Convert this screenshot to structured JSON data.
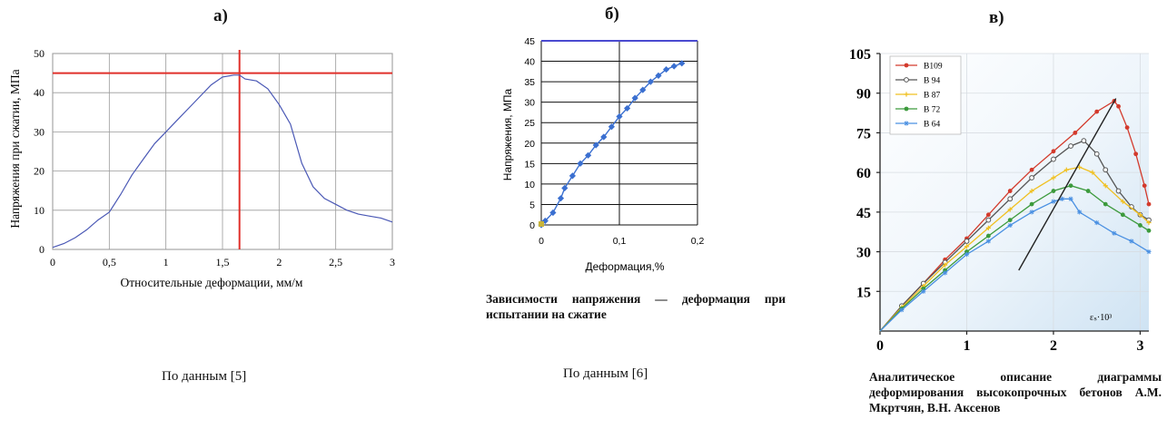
{
  "panel_labels": [
    "а)",
    "б)",
    "в)"
  ],
  "captions": {
    "a_source": "По данным [5]",
    "b_source": "По данным [6]",
    "b_title": "Зависимости напряжения — деформация при испытании на сжатие",
    "c_title": "Аналитическое описание диаграммы деформирования высокопрочных бетонов А.М. Мкртчян, В.Н. Аксенов"
  },
  "chart_data": [
    {
      "type": "line",
      "panel": "а)",
      "xlabel": "Относительные деформации, мм/м",
      "ylabel": "Напряжения при сжатии, МПа",
      "xlim": [
        0,
        3
      ],
      "ylim": [
        0,
        50
      ],
      "xticks": [
        0,
        0.5,
        1,
        1.5,
        2,
        2.5,
        3
      ],
      "xtick_labels": [
        "0",
        "0,5",
        "1",
        "1,5",
        "2",
        "2,5",
        "3"
      ],
      "yticks": [
        0,
        10,
        20,
        30,
        40,
        50
      ],
      "ytick_labels": [
        "0",
        "10",
        "20",
        "30",
        "40",
        "50"
      ],
      "grid": true,
      "reference_lines": {
        "y": 45,
        "x": 1.65,
        "color": "#e0302a"
      },
      "series": [
        {
          "color": "#4a58b5",
          "x": [
            0,
            0.1,
            0.2,
            0.3,
            0.4,
            0.5,
            0.6,
            0.7,
            0.8,
            0.9,
            1.0,
            1.1,
            1.2,
            1.3,
            1.4,
            1.5,
            1.6,
            1.65,
            1.7,
            1.8,
            1.9,
            2.0,
            2.1,
            2.2,
            2.3,
            2.4,
            2.5,
            2.6,
            2.7,
            2.8,
            2.9,
            3.0
          ],
          "y": [
            0.5,
            1.5,
            3,
            5,
            7.5,
            9.5,
            14,
            19,
            23,
            27,
            30,
            33,
            36,
            39,
            42,
            44,
            44.5,
            44.5,
            43.5,
            43,
            41,
            37,
            32,
            22,
            16,
            13,
            11.5,
            10,
            9,
            8.5,
            8,
            7
          ]
        }
      ]
    },
    {
      "type": "scatter",
      "panel": "б)",
      "xlabel": "Деформация,%",
      "ylabel": "Напряжения, МПа",
      "xlim": [
        0,
        0.2
      ],
      "ylim": [
        0,
        45
      ],
      "xticks": [
        0,
        0.1,
        0.2
      ],
      "xtick_labels": [
        "0",
        "0,1",
        "0,2"
      ],
      "yticks": [
        0,
        5,
        10,
        15,
        20,
        25,
        30,
        35,
        40,
        45
      ],
      "ytick_labels": [
        "0",
        "5",
        "10",
        "15",
        "20",
        "25",
        "30",
        "35",
        "40",
        "45"
      ],
      "grid": true,
      "top_line": {
        "y": 45,
        "color": "#4a4ad0"
      },
      "series": [
        {
          "color": "#3a6fd0",
          "x": [
            0,
            0.005,
            0.015,
            0.025,
            0.03,
            0.04,
            0.05,
            0.06,
            0.07,
            0.08,
            0.09,
            0.1,
            0.11,
            0.12,
            0.13,
            0.14,
            0.15,
            0.16,
            0.17,
            0.18
          ],
          "y": [
            0,
            1,
            3,
            6.5,
            9,
            12,
            15,
            17,
            19.5,
            21.5,
            24,
            26.5,
            28.5,
            31,
            33,
            35,
            36.5,
            38,
            38.8,
            39.5
          ]
        }
      ]
    },
    {
      "type": "line",
      "panel": "в)",
      "annotation": "εₛ·10³",
      "xlim": [
        0,
        3.1
      ],
      "ylim": [
        0,
        105
      ],
      "xticks": [
        0,
        1,
        2,
        3
      ],
      "xtick_labels": [
        "0",
        "1",
        "2",
        "3"
      ],
      "yticks": [
        15,
        30,
        45,
        60,
        75,
        90,
        105
      ],
      "ytick_labels": [
        "15",
        "30",
        "45",
        "60",
        "75",
        "90",
        "105"
      ],
      "grid": true,
      "legend": "top-left",
      "series": [
        {
          "name": "B109",
          "color": "#d33a2c",
          "marker": "filled-circle",
          "x": [
            0,
            0.25,
            0.5,
            0.75,
            1.0,
            1.25,
            1.5,
            1.75,
            2.0,
            2.25,
            2.5,
            2.7,
            2.75,
            2.85,
            2.95,
            3.05,
            3.1
          ],
          "y": [
            0,
            9.5,
            18,
            27,
            35,
            44,
            53,
            61,
            68,
            75,
            83,
            87,
            85,
            77,
            67,
            55,
            48
          ]
        },
        {
          "name": "B 94",
          "color": "#555555",
          "marker": "open-circle",
          "x": [
            0,
            0.25,
            0.5,
            0.75,
            1.0,
            1.25,
            1.5,
            1.75,
            2.0,
            2.2,
            2.35,
            2.5,
            2.6,
            2.75,
            2.9,
            3.0,
            3.1
          ],
          "y": [
            0,
            9.5,
            18,
            26,
            34,
            42,
            50,
            58,
            65,
            70,
            72,
            67,
            61,
            53,
            47,
            44,
            42
          ]
        },
        {
          "name": "B 87",
          "color": "#f0c020",
          "marker": "cross",
          "x": [
            0,
            0.25,
            0.5,
            0.75,
            1.0,
            1.25,
            1.5,
            1.75,
            2.0,
            2.15,
            2.3,
            2.45,
            2.6,
            2.8,
            3.0,
            3.1
          ],
          "y": [
            0,
            9,
            17,
            25,
            32,
            39,
            46,
            53,
            58,
            61,
            62,
            60,
            55,
            49,
            44,
            41
          ]
        },
        {
          "name": "B 72",
          "color": "#3c9a3c",
          "marker": "filled-circle",
          "x": [
            0,
            0.25,
            0.5,
            0.75,
            1.0,
            1.25,
            1.5,
            1.75,
            2.0,
            2.2,
            2.4,
            2.6,
            2.8,
            3.0,
            3.1
          ],
          "y": [
            0,
            8.5,
            16,
            23,
            30,
            36,
            42,
            48,
            53,
            55,
            53,
            48,
            44,
            40,
            38
          ]
        },
        {
          "name": "B 64",
          "color": "#4a90e2",
          "marker": "star",
          "x": [
            0,
            0.25,
            0.5,
            0.75,
            1.0,
            1.25,
            1.5,
            1.75,
            2.0,
            2.1,
            2.2,
            2.3,
            2.5,
            2.7,
            2.9,
            3.1
          ],
          "y": [
            0,
            8,
            15,
            22,
            29,
            34,
            40,
            45,
            49,
            50,
            50,
            45,
            41,
            37,
            34,
            30
          ]
        }
      ],
      "reference_line": {
        "color": "#222222",
        "x": [
          1.6,
          2.72
        ],
        "y": [
          23,
          88
        ]
      }
    }
  ]
}
